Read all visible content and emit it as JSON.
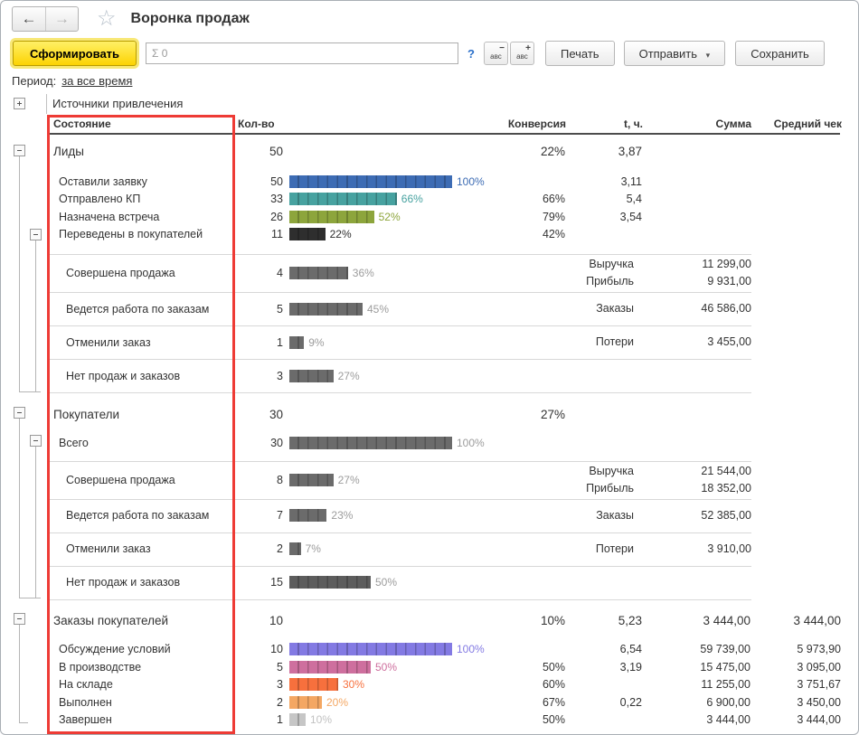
{
  "titlebar": {
    "title": "Воронка продаж",
    "back": "←",
    "forward": "→",
    "star": "☆"
  },
  "toolbar": {
    "generate": "Сформировать",
    "sum_value": "Σ 0",
    "help": "?",
    "abc_label": "авс",
    "abc_minus": "−",
    "abc_plus": "+",
    "print": "Печать",
    "send": "Отправить",
    "send_caret": "▾",
    "save": "Сохранить"
  },
  "period": {
    "label": "Период:",
    "value": "за все время"
  },
  "tree_root": "Источники привлечения",
  "columns": {
    "state": "Состояние",
    "qty": "Кол-во",
    "conversion": "Конверсия",
    "time": "t, ч.",
    "sum": "Сумма",
    "avg": "Средний чек"
  },
  "colors": {
    "accent_button": "#fcd302",
    "annotation": "#ee3b35",
    "gray_bar": "#6b6b6b"
  },
  "sections": [
    {
      "name": "Лиды",
      "qty": "50",
      "conversion": "22%",
      "time": "3,87",
      "states": [
        {
          "label": "Оставили заявку",
          "qty": "50",
          "pct": 100,
          "pct_label": "100%",
          "color": "#3d6cb4",
          "label_color": "#3d6cb4",
          "time": "3,11"
        },
        {
          "label": "Отправлено КП",
          "qty": "33",
          "pct": 66,
          "pct_label": "66%",
          "color": "#47a2a0",
          "label_color": "#47a2a0",
          "conversion": "66%",
          "time": "5,4"
        },
        {
          "label": "Назначена встреча",
          "qty": "26",
          "pct": 52,
          "pct_label": "52%",
          "color": "#8da53c",
          "label_color": "#8da53c",
          "conversion": "79%",
          "time": "3,54"
        },
        {
          "label": "Переведены в покупателей",
          "qty": "11",
          "pct": 22,
          "pct_label": "22%",
          "color": "#2e2e2e",
          "label_color": "#2e2e2e",
          "conversion": "42%"
        }
      ],
      "blocks": [
        {
          "label": "Совершена продажа",
          "qty": "4",
          "pct": 36,
          "pct_label": "36%",
          "color": "#6b6b6b",
          "label_color": "#9c9c9c",
          "metrics": [
            {
              "name": "Выручка",
              "value": "11 299,00"
            },
            {
              "name": "Прибыль",
              "value": "9 931,00"
            }
          ]
        },
        {
          "label": "Ведется работа по заказам",
          "qty": "5",
          "pct": 45,
          "pct_label": "45%",
          "color": "#6b6b6b",
          "label_color": "#9c9c9c",
          "metrics": [
            {
              "name": "Заказы",
              "value": "46 586,00"
            }
          ]
        },
        {
          "label": "Отменили заказ",
          "qty": "1",
          "pct": 9,
          "pct_label": "9%",
          "color": "#6b6b6b",
          "label_color": "#9c9c9c",
          "metrics": [
            {
              "name": "Потери",
              "value": "3 455,00"
            }
          ]
        },
        {
          "label": "Нет продаж и заказов",
          "qty": "3",
          "pct": 27,
          "pct_label": "27%",
          "color": "#6b6b6b",
          "label_color": "#9c9c9c",
          "metrics": []
        }
      ]
    },
    {
      "name": "Покупатели",
      "qty": "30",
      "conversion": "27%",
      "states": [
        {
          "label": "Всего",
          "qty": "30",
          "pct": 100,
          "pct_label": "100%",
          "color": "#6b6b6b",
          "label_color": "#9c9c9c"
        }
      ],
      "blocks": [
        {
          "label": "Совершена продажа",
          "qty": "8",
          "pct": 27,
          "pct_label": "27%",
          "color": "#6b6b6b",
          "label_color": "#9c9c9c",
          "metrics": [
            {
              "name": "Выручка",
              "value": "21 544,00"
            },
            {
              "name": "Прибыль",
              "value": "18 352,00"
            }
          ]
        },
        {
          "label": "Ведется работа по заказам",
          "qty": "7",
          "pct": 23,
          "pct_label": "23%",
          "color": "#6b6b6b",
          "label_color": "#9c9c9c",
          "metrics": [
            {
              "name": "Заказы",
              "value": "52 385,00"
            }
          ]
        },
        {
          "label": "Отменили заказ",
          "qty": "2",
          "pct": 7,
          "pct_label": "7%",
          "color": "#6b6b6b",
          "label_color": "#9c9c9c",
          "metrics": [
            {
              "name": "Потери",
              "value": "3 910,00"
            }
          ]
        },
        {
          "label": "Нет продаж и заказов",
          "qty": "15",
          "pct": 50,
          "pct_label": "50%",
          "color": "#5d5d5d",
          "label_color": "#9c9c9c",
          "metrics": []
        }
      ]
    },
    {
      "name": "Заказы покупателей",
      "qty": "10",
      "conversion": "10%",
      "time": "5,23",
      "sum": "3 444,00",
      "avg": "3 444,00",
      "states": [
        {
          "label": "Обсуждение условий",
          "qty": "10",
          "pct": 100,
          "pct_label": "100%",
          "color": "#837ae3",
          "label_color": "#837ae3",
          "time": "6,54",
          "sum": "59 739,00",
          "avg": "5 973,90"
        },
        {
          "label": "В производстве",
          "qty": "5",
          "pct": 50,
          "pct_label": "50%",
          "color": "#ce6f9e",
          "label_color": "#ce6f9e",
          "conversion": "50%",
          "time": "3,19",
          "sum": "15 475,00",
          "avg": "3 095,00"
        },
        {
          "label": "На складе",
          "qty": "3",
          "pct": 30,
          "pct_label": "30%",
          "color": "#f7703d",
          "label_color": "#f7703d",
          "conversion": "60%",
          "sum": "11 255,00",
          "avg": "3 751,67"
        },
        {
          "label": "Выполнен",
          "qty": "2",
          "pct": 20,
          "pct_label": "20%",
          "color": "#f4a763",
          "label_color": "#f4a763",
          "conversion": "67%",
          "time": "0,22",
          "sum": "6 900,00",
          "avg": "3 450,00"
        },
        {
          "label": "Завершен",
          "qty": "1",
          "pct": 10,
          "pct_label": "10%",
          "color": "#c6c6c6",
          "label_color": "#c2c2c2",
          "conversion": "50%",
          "sum": "3 444,00",
          "avg": "3 444,00"
        }
      ],
      "blocks": []
    }
  ]
}
